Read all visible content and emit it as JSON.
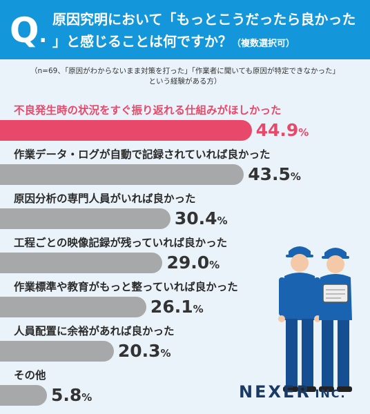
{
  "question": {
    "mark": "Q",
    "mark_dot": ".",
    "line1": "原因究明において「もっとこうだったら良かった",
    "line2": "」と感じることは何ですか？",
    "line2_note": "（複数選択可）"
  },
  "sample_note": {
    "line1": "（n=69、「原因がわからないまま対策を打った」「作業者に聞いても原因が特定できなかった」",
    "line2": "という経験がある方）"
  },
  "unit": "%",
  "colors": {
    "header": "#1496db",
    "highlight": "#e8496a",
    "bar": "#a7a8aa",
    "background": "#eaf3fa",
    "logo": "#1a3a66"
  },
  "chart_data": {
    "type": "bar",
    "orientation": "horizontal",
    "unit": "%",
    "xlim": [
      0,
      50
    ],
    "categories": [
      "不良発生時の状況をすぐ振り返れる仕組みがほしかった",
      "作業データ・ログが自動で記録されていれば良かった",
      "原因分析の専門人員がいれば良かった",
      "工程ごとの映像記録が残っていれば良かった",
      "作業標準や教育がもっと整っていれば良かった",
      "人員配置に余裕があれば良かった",
      "その他"
    ],
    "values": [
      44.9,
      43.5,
      30.4,
      29.0,
      26.1,
      20.3,
      5.8
    ],
    "labels": [
      "44.9",
      "43.5",
      "30.4",
      "29.0",
      "26.1",
      "20.3",
      "5.8"
    ]
  },
  "logo": {
    "main": "NEXER",
    "suffix": "INC."
  }
}
